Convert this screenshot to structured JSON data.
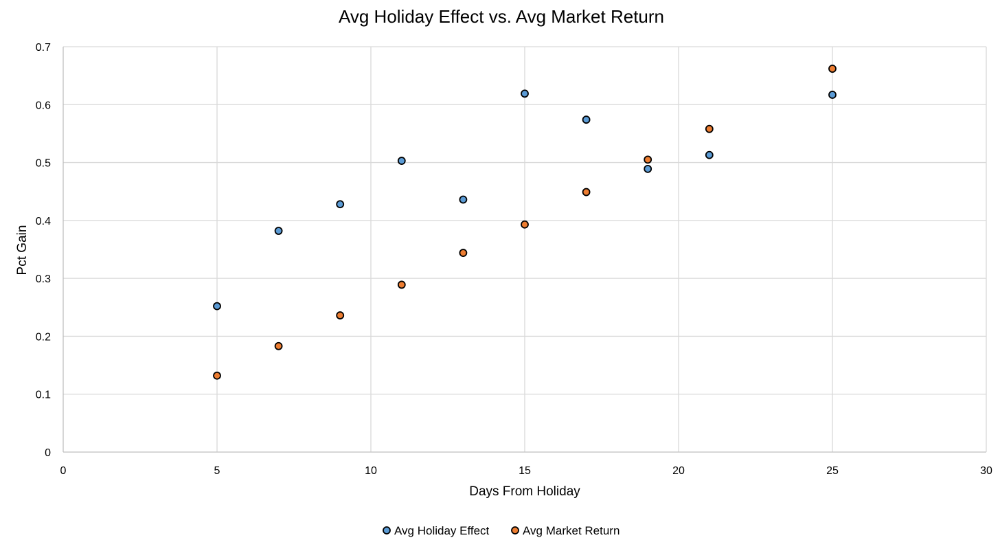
{
  "chart_data": {
    "type": "scatter",
    "title": "Avg Holiday Effect vs. Avg Market Return",
    "xlabel": "Days From Holiday",
    "ylabel": "Pct Gain",
    "xlim": [
      0,
      30
    ],
    "ylim": [
      0,
      0.7
    ],
    "x_ticks": [
      0,
      5,
      10,
      15,
      20,
      25,
      30
    ],
    "y_ticks": [
      0,
      0.1,
      0.2,
      0.3,
      0.4,
      0.5,
      0.6,
      0.7
    ],
    "x_tick_labels": [
      "0",
      "5",
      "10",
      "15",
      "20",
      "25",
      "30"
    ],
    "y_tick_labels": [
      "0",
      "0.1",
      "0.2",
      "0.3",
      "0.4",
      "0.5",
      "0.6",
      "0.7"
    ],
    "grid": true,
    "legend_position": "bottom",
    "series": [
      {
        "name": "Avg Holiday Effect",
        "color": "#5b9bd5",
        "points": [
          {
            "x": 5,
            "y": 0.252
          },
          {
            "x": 7,
            "y": 0.382
          },
          {
            "x": 9,
            "y": 0.428
          },
          {
            "x": 11,
            "y": 0.503
          },
          {
            "x": 13,
            "y": 0.436
          },
          {
            "x": 15,
            "y": 0.619
          },
          {
            "x": 17,
            "y": 0.574
          },
          {
            "x": 19,
            "y": 0.489
          },
          {
            "x": 21,
            "y": 0.513
          },
          {
            "x": 25,
            "y": 0.617
          }
        ]
      },
      {
        "name": "Avg Market Return",
        "color": "#ed7d31",
        "points": [
          {
            "x": 5,
            "y": 0.132
          },
          {
            "x": 7,
            "y": 0.183
          },
          {
            "x": 9,
            "y": 0.236
          },
          {
            "x": 11,
            "y": 0.289
          },
          {
            "x": 13,
            "y": 0.344
          },
          {
            "x": 15,
            "y": 0.393
          },
          {
            "x": 17,
            "y": 0.449
          },
          {
            "x": 19,
            "y": 0.505
          },
          {
            "x": 21,
            "y": 0.558
          },
          {
            "x": 25,
            "y": 0.662
          }
        ]
      }
    ]
  }
}
